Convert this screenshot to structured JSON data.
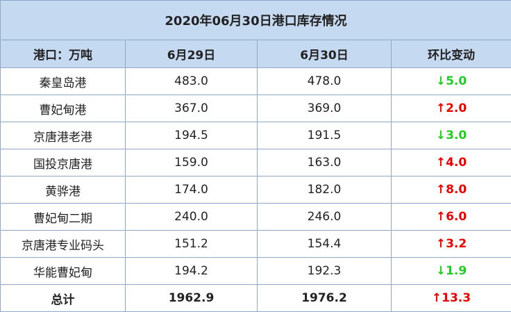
{
  "table": {
    "title": "2020年06月30日港口库存情况",
    "header": [
      "港口：万吨",
      "6月29日",
      "6月30日",
      "环比变动"
    ],
    "rows": [
      [
        "秦皇岛港",
        "483.0",
        "478.0",
        {
          "text": "↓5.0",
          "color": "#22cc22"
        }
      ],
      [
        "曹妃甸港",
        "367.0",
        "369.0",
        {
          "text": "↑2.0",
          "color": "#ee0000"
        }
      ],
      [
        "京唐港老港",
        "194.5",
        "191.5",
        {
          "text": "↓3.0",
          "color": "#22cc22"
        }
      ],
      [
        "国投京唐港",
        "159.0",
        "163.0",
        {
          "text": "↑4.0",
          "color": "#ee0000"
        }
      ],
      [
        "黄骅港",
        "174.0",
        "182.0",
        {
          "text": "↑8.0",
          "color": "#ee0000"
        }
      ],
      [
        "曹妃甸二期",
        "240.0",
        "246.0",
        {
          "text": "↑6.0",
          "color": "#ee0000"
        }
      ],
      [
        "京唐港专业码头",
        "151.2",
        "154.4",
        {
          "text": "↑3.2",
          "color": "#ee0000"
        }
      ],
      [
        "华能曹妃甸",
        "194.2",
        "192.3",
        {
          "text": "↓1.9",
          "color": "#22cc22"
        }
      ]
    ],
    "total": [
      "总计",
      "1962.9",
      "1976.2",
      {
        "text": "↑13.3",
        "color": "#ee0000"
      }
    ]
  }
}
